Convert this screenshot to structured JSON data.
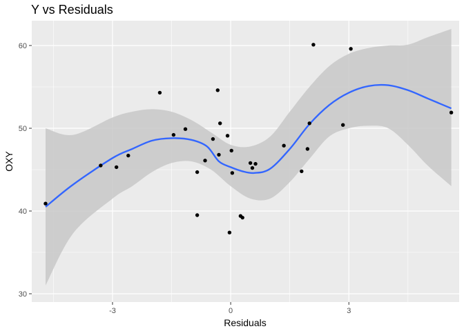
{
  "chart_data": {
    "type": "scatter",
    "title": "Y vs Residuals",
    "xlabel": "Residuals",
    "ylabel": "OXY",
    "xlim": [
      -5.05,
      5.8
    ],
    "ylim": [
      29,
      63
    ],
    "x_ticks": [
      -3,
      0,
      3
    ],
    "y_ticks": [
      30,
      40,
      50,
      60
    ],
    "grid": true,
    "points": [
      {
        "x": -4.7,
        "y": 40.9
      },
      {
        "x": -3.3,
        "y": 45.5
      },
      {
        "x": -2.9,
        "y": 45.3
      },
      {
        "x": -2.6,
        "y": 46.7
      },
      {
        "x": -1.8,
        "y": 54.3
      },
      {
        "x": -1.45,
        "y": 49.2
      },
      {
        "x": -1.15,
        "y": 49.9
      },
      {
        "x": -0.85,
        "y": 44.7
      },
      {
        "x": -0.85,
        "y": 39.5
      },
      {
        "x": -0.65,
        "y": 46.1
      },
      {
        "x": -0.45,
        "y": 48.7
      },
      {
        "x": -0.33,
        "y": 54.6
      },
      {
        "x": -0.3,
        "y": 46.8
      },
      {
        "x": -0.27,
        "y": 50.6
      },
      {
        "x": -0.08,
        "y": 49.1
      },
      {
        "x": -0.03,
        "y": 37.4
      },
      {
        "x": 0.02,
        "y": 47.3
      },
      {
        "x": 0.04,
        "y": 44.6
      },
      {
        "x": 0.25,
        "y": 39.4
      },
      {
        "x": 0.3,
        "y": 39.2
      },
      {
        "x": 0.5,
        "y": 45.8
      },
      {
        "x": 0.55,
        "y": 45.2
      },
      {
        "x": 0.63,
        "y": 45.7
      },
      {
        "x": 1.35,
        "y": 47.9
      },
      {
        "x": 1.8,
        "y": 44.8
      },
      {
        "x": 1.95,
        "y": 47.5
      },
      {
        "x": 2.0,
        "y": 50.6
      },
      {
        "x": 2.1,
        "y": 60.1
      },
      {
        "x": 2.85,
        "y": 50.4
      },
      {
        "x": 3.05,
        "y": 59.6
      },
      {
        "x": 5.6,
        "y": 51.9
      }
    ],
    "smooth_line": [
      {
        "x": -4.7,
        "y": 40.5
      },
      {
        "x": -4.0,
        "y": 43.2
      },
      {
        "x": -3.0,
        "y": 46.4
      },
      {
        "x": -2.5,
        "y": 47.5
      },
      {
        "x": -2.0,
        "y": 48.5
      },
      {
        "x": -1.5,
        "y": 48.8
      },
      {
        "x": -1.0,
        "y": 48.6
      },
      {
        "x": -0.6,
        "y": 47.8
      },
      {
        "x": -0.3,
        "y": 46.0
      },
      {
        "x": 0.0,
        "y": 45.3
      },
      {
        "x": 0.3,
        "y": 44.8
      },
      {
        "x": 0.6,
        "y": 44.6
      },
      {
        "x": 1.0,
        "y": 45.1
      },
      {
        "x": 1.5,
        "y": 47.5
      },
      {
        "x": 2.0,
        "y": 50.5
      },
      {
        "x": 2.5,
        "y": 52.8
      },
      {
        "x": 3.0,
        "y": 54.3
      },
      {
        "x": 3.5,
        "y": 55.1
      },
      {
        "x": 4.0,
        "y": 55.2
      },
      {
        "x": 4.5,
        "y": 54.6
      },
      {
        "x": 5.0,
        "y": 53.6
      },
      {
        "x": 5.6,
        "y": 52.4
      }
    ],
    "band_upper": [
      {
        "x": -4.7,
        "y": 50.0
      },
      {
        "x": -4.0,
        "y": 49.2
      },
      {
        "x": -3.0,
        "y": 51.3
      },
      {
        "x": -2.5,
        "y": 52.0
      },
      {
        "x": -2.0,
        "y": 52.3
      },
      {
        "x": -1.5,
        "y": 52.0
      },
      {
        "x": -1.0,
        "y": 51.0
      },
      {
        "x": -0.5,
        "y": 49.5
      },
      {
        "x": 0.0,
        "y": 48.0
      },
      {
        "x": 0.5,
        "y": 47.8
      },
      {
        "x": 1.0,
        "y": 49.0
      },
      {
        "x": 1.5,
        "y": 52.0
      },
      {
        "x": 2.0,
        "y": 55.0
      },
      {
        "x": 2.5,
        "y": 57.5
      },
      {
        "x": 3.0,
        "y": 59.0
      },
      {
        "x": 3.5,
        "y": 59.7
      },
      {
        "x": 4.0,
        "y": 60.0
      },
      {
        "x": 4.5,
        "y": 60.1
      },
      {
        "x": 5.0,
        "y": 61.0
      },
      {
        "x": 5.6,
        "y": 62.0
      }
    ],
    "band_lower": [
      {
        "x": -4.7,
        "y": 31.0
      },
      {
        "x": -4.0,
        "y": 37.3
      },
      {
        "x": -3.0,
        "y": 41.5
      },
      {
        "x": -2.5,
        "y": 43.0
      },
      {
        "x": -2.0,
        "y": 44.7
      },
      {
        "x": -1.5,
        "y": 45.8
      },
      {
        "x": -1.0,
        "y": 46.0
      },
      {
        "x": -0.5,
        "y": 45.0
      },
      {
        "x": 0.0,
        "y": 43.0
      },
      {
        "x": 0.5,
        "y": 41.5
      },
      {
        "x": 1.0,
        "y": 41.5
      },
      {
        "x": 1.5,
        "y": 43.5
      },
      {
        "x": 2.0,
        "y": 46.3
      },
      {
        "x": 2.5,
        "y": 49.0
      },
      {
        "x": 3.0,
        "y": 50.0
      },
      {
        "x": 3.5,
        "y": 50.3
      },
      {
        "x": 4.0,
        "y": 50.0
      },
      {
        "x": 4.5,
        "y": 48.0
      },
      {
        "x": 5.0,
        "y": 45.5
      },
      {
        "x": 5.6,
        "y": 43.0
      }
    ],
    "colors": {
      "panel": "#ebebeb",
      "grid_major": "#ffffff",
      "points": "#000000",
      "smooth_line": "#3366ff",
      "band": "#c8c8c8"
    }
  }
}
